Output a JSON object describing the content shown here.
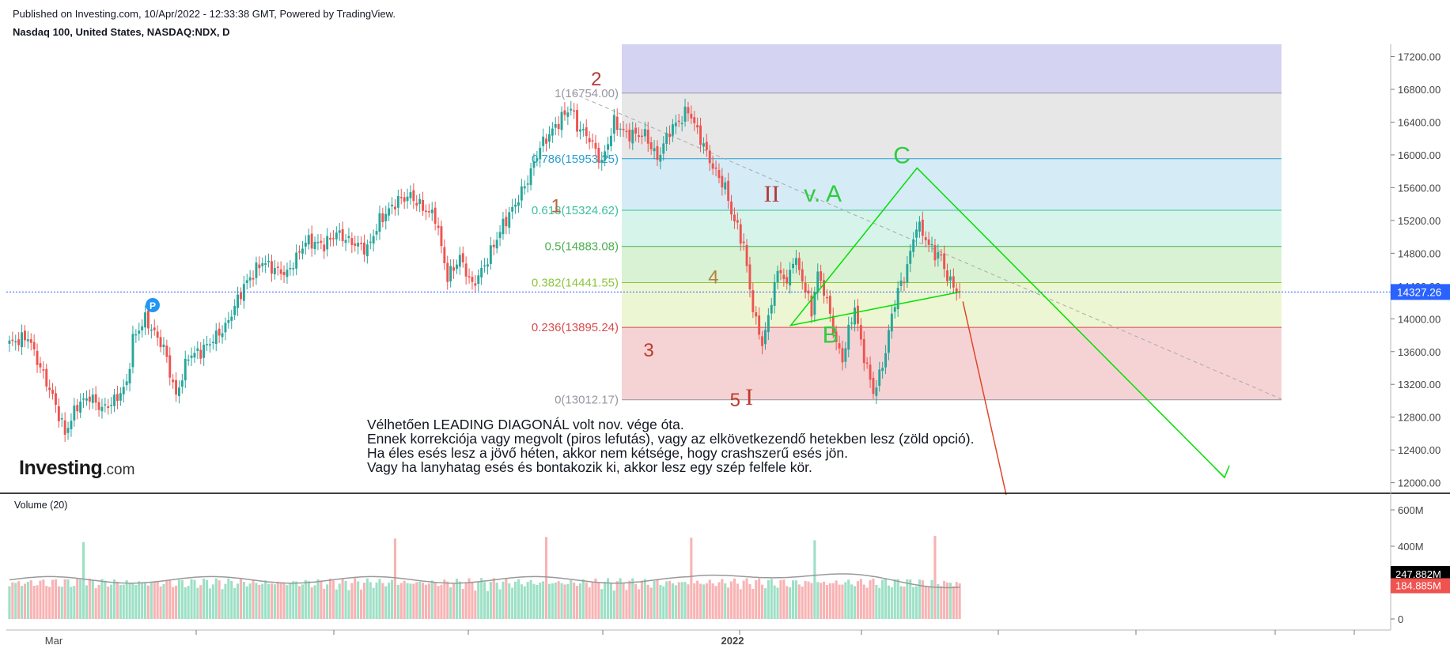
{
  "header": {
    "published": "Published on Investing.com, 10/Apr/2022 - 12:33:38 GMT, Powered by TradingView.",
    "symbol": "Nasdaq 100, United States, NASDAQ:NDX, D"
  },
  "logo": {
    "brand": "Investing",
    "suffix": ".com"
  },
  "note_lines": [
    "Vélhetően LEADING DIAGONÁL volt nov. vége óta.",
    "Ennek korrekciója vagy megvolt (piros lefutás), vagy az elkövetkezendő hetekben lesz (zöld opció).",
    "Ha éles esés lesz a jövő héten, akkor nem kétsége, hogy crashszerű esés jön.",
    "Vagy ha lanyhatag esés és bontakozik ki, akkor lesz egy szép felfele kör."
  ],
  "volume_title": "Volume (20)",
  "dividend_marker": "P",
  "chart_data": {
    "type": "candlestick",
    "y_axis": {
      "min": 11900,
      "max": 17350,
      "ticks": [
        12000,
        12400,
        12800,
        13200,
        13600,
        14000,
        14400,
        14800,
        15200,
        15600,
        16000,
        16400,
        16800,
        17200
      ],
      "tick_labels": [
        "12000.00",
        "12400.00",
        "12800.00",
        "13200.00",
        "13600.00",
        "14000.00",
        "14400.00",
        "14800.00",
        "15200.00",
        "15600.00",
        "16000.00",
        "16400.00",
        "16800.00",
        "17200.00"
      ]
    },
    "x_axis": {
      "labels": [
        "Mar",
        "2022"
      ]
    },
    "last_price": {
      "value": 14327.26,
      "label": "14327.26",
      "color": "#2962ff"
    },
    "price_waypoints": [
      [
        0,
        13700
      ],
      [
        6,
        13780
      ],
      [
        10,
        13400
      ],
      [
        14,
        13050
      ],
      [
        18,
        12600
      ],
      [
        22,
        12950
      ],
      [
        26,
        13050
      ],
      [
        30,
        12900
      ],
      [
        34,
        13000
      ],
      [
        38,
        13200
      ],
      [
        40,
        13750
      ],
      [
        44,
        14000
      ],
      [
        46,
        13880
      ],
      [
        50,
        13650
      ],
      [
        54,
        13050
      ],
      [
        58,
        13550
      ],
      [
        62,
        13600
      ],
      [
        66,
        13750
      ],
      [
        70,
        13900
      ],
      [
        76,
        14400
      ],
      [
        82,
        14700
      ],
      [
        86,
        14600
      ],
      [
        90,
        14550
      ],
      [
        96,
        14950
      ],
      [
        102,
        14900
      ],
      [
        106,
        15050
      ],
      [
        110,
        14950
      ],
      [
        116,
        14850
      ],
      [
        120,
        15200
      ],
      [
        126,
        15450
      ],
      [
        130,
        15500
      ],
      [
        134,
        15350
      ],
      [
        138,
        15250
      ],
      [
        142,
        14500
      ],
      [
        146,
        14750
      ],
      [
        150,
        14400
      ],
      [
        154,
        14650
      ],
      [
        160,
        15150
      ],
      [
        164,
        15400
      ],
      [
        168,
        15700
      ],
      [
        172,
        16100
      ],
      [
        176,
        16300
      ],
      [
        180,
        16500
      ],
      [
        182,
        16580
      ],
      [
        184,
        16350
      ],
      [
        188,
        16200
      ],
      [
        192,
        15900
      ],
      [
        196,
        16400
      ],
      [
        200,
        16250
      ],
      [
        206,
        16250
      ],
      [
        210,
        15950
      ],
      [
        214,
        16300
      ],
      [
        218,
        16450
      ],
      [
        220,
        16550
      ],
      [
        224,
        16200
      ],
      [
        228,
        15850
      ],
      [
        232,
        15600
      ],
      [
        234,
        15300
      ],
      [
        238,
        14900
      ],
      [
        240,
        14350
      ],
      [
        242,
        13950
      ],
      [
        244,
        13700
      ],
      [
        246,
        14000
      ],
      [
        248,
        14450
      ],
      [
        250,
        14600
      ],
      [
        252,
        14400
      ],
      [
        254,
        14750
      ],
      [
        256,
        14600
      ],
      [
        258,
        14350
      ],
      [
        260,
        14100
      ],
      [
        262,
        14550
      ],
      [
        264,
        14350
      ],
      [
        266,
        14050
      ],
      [
        268,
        13700
      ],
      [
        270,
        13500
      ],
      [
        272,
        13850
      ],
      [
        274,
        14150
      ],
      [
        276,
        13700
      ],
      [
        278,
        13400
      ],
      [
        280,
        13100
      ],
      [
        282,
        13300
      ],
      [
        284,
        13600
      ],
      [
        286,
        14050
      ],
      [
        288,
        14350
      ],
      [
        290,
        14500
      ],
      [
        292,
        14800
      ],
      [
        294,
        15150
      ],
      [
        296,
        15050
      ],
      [
        298,
        14900
      ],
      [
        300,
        14800
      ],
      [
        302,
        14750
      ],
      [
        304,
        14500
      ],
      [
        306,
        14400
      ],
      [
        308,
        14327
      ]
    ],
    "fib_levels": [
      {
        "ratio": "1",
        "price": 16754.0,
        "label": "1(16754.00)",
        "color": "#9598a1"
      },
      {
        "ratio": "0.786",
        "price": 15953.25,
        "label": "0.786(15953.25)",
        "color": "#2b9fd1"
      },
      {
        "ratio": "0.618",
        "price": 15324.62,
        "label": "0.618(15324.62)",
        "color": "#3bbf9c"
      },
      {
        "ratio": "0.5",
        "price": 14883.08,
        "label": "0.5(14883.08)",
        "color": "#4caf50"
      },
      {
        "ratio": "0.382",
        "price": 14441.55,
        "label": "0.382(14441.55)",
        "color": "#8dc63f"
      },
      {
        "ratio": "0.236",
        "price": 13895.24,
        "label": "0.236(13895.24)",
        "color": "#d94b4b"
      },
      {
        "ratio": "0",
        "price": 13012.17,
        "label": "0(13012.17)",
        "color": "#9598a1"
      }
    ],
    "fib_zone_colors": [
      "#d5d3f2",
      "#e7e7e7",
      "#d5ebf5",
      "#d6f4ea",
      "#d9f2d4",
      "#ecf6d2",
      "#f5d3d4"
    ],
    "wave_labels": [
      {
        "text": "2",
        "price": 16850,
        "bar": 189,
        "color": "#b33a3a"
      },
      {
        "text": "1",
        "price": 15300,
        "bar": 176,
        "color": "#b5683f"
      },
      {
        "text": "3",
        "price": 13540,
        "bar": 206,
        "color": "#c0392b"
      },
      {
        "text": "4",
        "price": 14430,
        "bar": 227,
        "color": "#b5833f"
      },
      {
        "text": "5",
        "price": 12930,
        "bar": 234,
        "color": "#c0392b"
      },
      {
        "text": "I",
        "price": 12950,
        "bar": 239,
        "color": "#c0392b"
      },
      {
        "text": "II",
        "price": 15430,
        "bar": 245,
        "color": "#b33a3a"
      },
      {
        "text": "v. A",
        "price": 15430,
        "bar": 258,
        "color": "#2ecc40"
      },
      {
        "text": "B",
        "price": 13710,
        "bar": 264,
        "color": "#2ecc40"
      },
      {
        "text": "C",
        "price": 15900,
        "bar": 287,
        "color": "#2ecc40"
      }
    ],
    "volume": {
      "axis_ticks": [
        0,
        200,
        400,
        600
      ],
      "tick_labels": [
        "0",
        "",
        "400M",
        "600M"
      ],
      "ma_value": 247.882,
      "ma_label": "247.882M",
      "last_value": 184.885,
      "last_label": "184.885M"
    },
    "colors": {
      "up": "#26a69a",
      "down": "#ef5350",
      "vol_up": "#9de0c6",
      "vol_down": "#f8b3b4",
      "ma": "#999999",
      "green_path": "#00e000",
      "red_path": "#e0452c",
      "trend": "#aaaaaa"
    }
  }
}
